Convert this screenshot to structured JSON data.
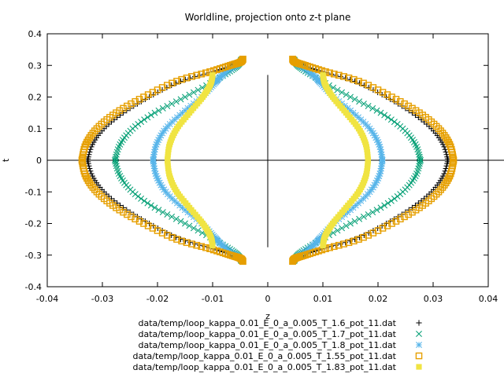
{
  "chart_data": {
    "type": "scatter",
    "title": "Worldline, projection onto z-t plane",
    "xlabel": "z",
    "ylabel": "t",
    "xlim": [
      -0.04,
      0.04
    ],
    "ylim": [
      -0.4,
      0.4
    ],
    "xticks": [
      "-0.04",
      "-0.03",
      "-0.02",
      "-0.01",
      "0",
      "0.01",
      "0.02",
      "0.03",
      "0.04"
    ],
    "yticks": [
      "-0.4",
      "-0.3",
      "-0.2",
      "-0.1",
      "0",
      "0.1",
      "0.2",
      "0.3",
      "0.4"
    ],
    "grid": false,
    "legend_position": "bottom-center",
    "zero_axes": true,
    "series": [
      {
        "name": "data/temp/loop_kappa_0.01_E_0_a_0.005_T_1.6_pot_11.dat",
        "marker": "plus",
        "color": "#000000",
        "shape_points": [
          [
            0.0327,
            0.0
          ],
          [
            0.0318,
            0.05
          ],
          [
            0.0297,
            0.1
          ],
          [
            0.0262,
            0.15
          ],
          [
            0.0215,
            0.2
          ],
          [
            0.0158,
            0.25
          ],
          [
            0.01,
            0.28
          ],
          [
            0.0065,
            0.3
          ],
          [
            0.0048,
            0.315
          ]
        ]
      },
      {
        "name": "data/temp/loop_kappa_0.01_E_0_a_0.005_T_1.7_pot_11.dat",
        "marker": "cross",
        "color": "#009e73",
        "shape_points": [
          [
            0.0277,
            0.0
          ],
          [
            0.0268,
            0.05
          ],
          [
            0.0245,
            0.1
          ],
          [
            0.0205,
            0.15
          ],
          [
            0.015,
            0.2
          ],
          [
            0.0098,
            0.25
          ],
          [
            0.0065,
            0.285
          ],
          [
            0.0052,
            0.305
          ],
          [
            0.0048,
            0.318
          ]
        ]
      },
      {
        "name": "data/temp/loop_kappa_0.01_E_0_a_0.005_T_1.8_pot_11.dat",
        "marker": "star",
        "color": "#56b4e9",
        "shape_points": [
          [
            0.0208,
            0.0
          ],
          [
            0.0202,
            0.05
          ],
          [
            0.0185,
            0.1
          ],
          [
            0.0155,
            0.15
          ],
          [
            0.012,
            0.2
          ],
          [
            0.0098,
            0.24
          ],
          [
            0.0088,
            0.26
          ],
          [
            0.0075,
            0.28
          ],
          [
            0.0058,
            0.3
          ],
          [
            0.0048,
            0.315
          ]
        ]
      },
      {
        "name": "data/temp/loop_kappa_0.01_E_0_a_0.005_T_1.55_pot_11.dat",
        "marker": "open-square",
        "color": "#e69f00",
        "shape_points": [
          [
            0.0337,
            0.0
          ],
          [
            0.033,
            0.05
          ],
          [
            0.031,
            0.1
          ],
          [
            0.0275,
            0.15
          ],
          [
            0.0225,
            0.2
          ],
          [
            0.0165,
            0.25
          ],
          [
            0.0105,
            0.28
          ],
          [
            0.0068,
            0.3
          ],
          [
            0.005,
            0.31
          ],
          [
            0.0045,
            0.32
          ]
        ]
      },
      {
        "name": "data/temp/loop_kappa_0.01_E_0_a_0.005_T_1.83_pot_11.dat",
        "marker": "filled-square",
        "color": "#f0e442",
        "shape_points": [
          [
            0.0182,
            0.0
          ],
          [
            0.0178,
            0.05
          ],
          [
            0.0165,
            0.1
          ],
          [
            0.0142,
            0.15
          ],
          [
            0.0118,
            0.2
          ],
          [
            0.0104,
            0.24
          ],
          [
            0.01,
            0.27
          ]
        ]
      }
    ]
  }
}
